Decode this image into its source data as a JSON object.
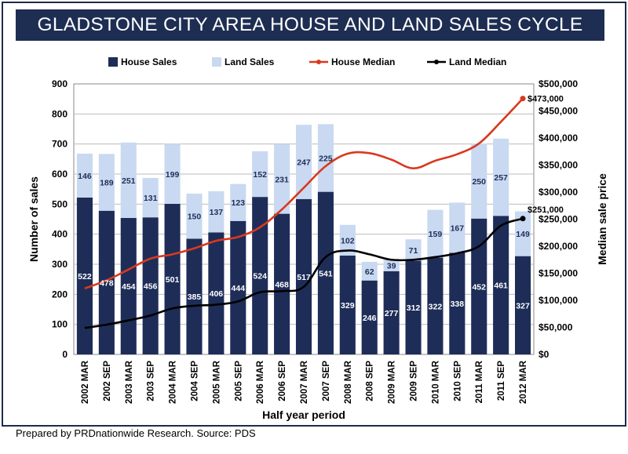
{
  "title": "GLADSTONE CITY AREA HOUSE AND LAND SALES CYCLE",
  "footer": "Prepared by PRDnationwide Research. Source: PDS",
  "chart_data": {
    "type": "bar",
    "stacked": true,
    "xlabel": "Half year period",
    "ylabel": "Number of sales",
    "ylabel_right": "Median sale price",
    "ylim": [
      0,
      900
    ],
    "ylim_right": [
      0,
      500000
    ],
    "yticks": [
      "0",
      "100",
      "200",
      "300",
      "400",
      "500",
      "600",
      "700",
      "800",
      "900"
    ],
    "yticks_right": [
      "$0",
      "$50,000",
      "$100,000",
      "$150,000",
      "$200,000",
      "$250,000",
      "$300,000",
      "$350,000",
      "$400,000",
      "$450,000",
      "$500,000"
    ],
    "grid": true,
    "legend_position": "top",
    "categories": [
      "2002 MAR",
      "2002 SEP",
      "2003 MAR",
      "2003 SEP",
      "2004 MAR",
      "2004 SEP",
      "2005 MAR",
      "2005 SEP",
      "2006 MAR",
      "2006 SEP",
      "2007 MAR",
      "2007 SEP",
      "2008 MAR",
      "2008 SEP",
      "2009 MAR",
      "2009 SEP",
      "2010 MAR",
      "2010 SEP",
      "2011 MAR",
      "2011 SEP",
      "2012 MAR"
    ],
    "series": [
      {
        "name": "House Sales",
        "kind": "bar",
        "axis": "left",
        "color": "#1e2d58",
        "values": [
          522,
          478,
          454,
          456,
          501,
          385,
          406,
          444,
          524,
          468,
          517,
          541,
          329,
          246,
          277,
          312,
          322,
          338,
          452,
          461,
          327
        ]
      },
      {
        "name": "Land Sales",
        "kind": "bar",
        "axis": "left",
        "color": "#c9d9f1",
        "values": [
          146,
          189,
          251,
          131,
          199,
          150,
          137,
          123,
          152,
          231,
          247,
          225,
          102,
          62,
          39,
          71,
          159,
          167,
          250,
          257,
          149
        ]
      },
      {
        "name": "House Median",
        "kind": "line",
        "axis": "right",
        "color": "#d9391e",
        "values": [
          122000,
          137000,
          157000,
          177000,
          185000,
          196000,
          210000,
          217000,
          235000,
          268000,
          308000,
          348000,
          371000,
          372000,
          360000,
          344000,
          358000,
          370000,
          390000,
          430000,
          473000
        ],
        "end_label": "$473,000"
      },
      {
        "name": "Land Median",
        "kind": "line",
        "axis": "right",
        "color": "#000000",
        "values": [
          49000,
          55000,
          63000,
          72000,
          85000,
          90000,
          92000,
          98000,
          115000,
          117000,
          125000,
          180000,
          192000,
          185000,
          175000,
          175000,
          180000,
          187000,
          200000,
          238000,
          251000
        ],
        "end_label": "$251,000"
      }
    ]
  }
}
